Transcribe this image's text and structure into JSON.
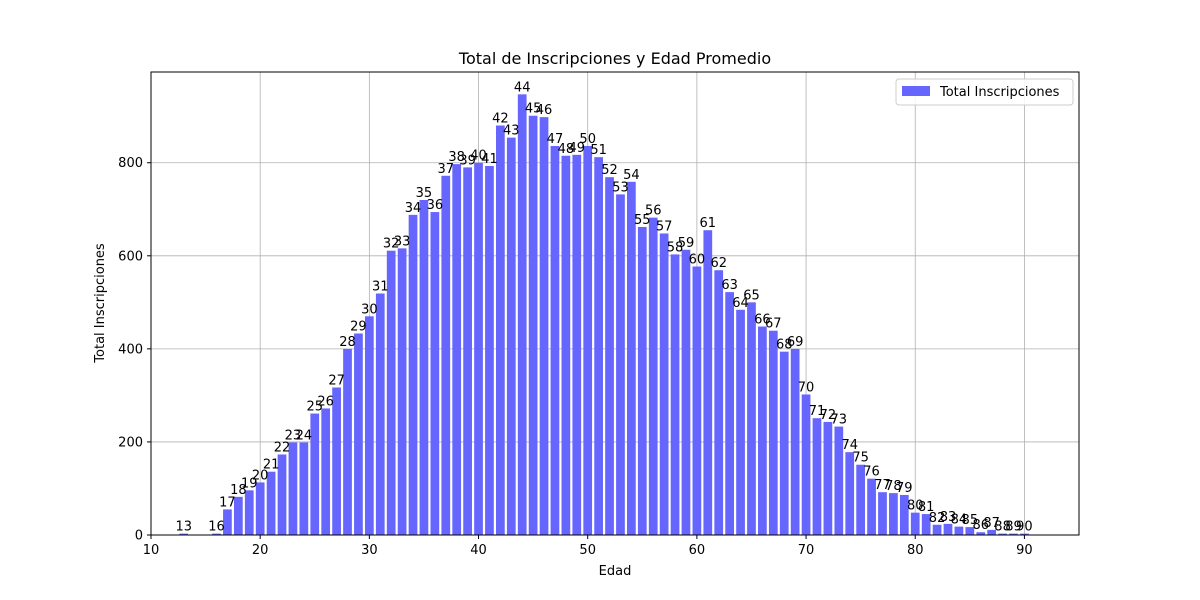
{
  "chart_data": {
    "type": "bar",
    "title": "Total de Inscripciones y Edad Promedio",
    "xlabel": "Edad",
    "ylabel": "Total Inscripciones",
    "xlim": [
      10,
      95
    ],
    "ylim": [
      0,
      995
    ],
    "xticks": [
      10,
      20,
      30,
      40,
      50,
      60,
      70,
      80,
      90
    ],
    "yticks": [
      0,
      200,
      400,
      600,
      800
    ],
    "grid": true,
    "legend_position": "top-right",
    "bar_color": "#6666ff",
    "series": [
      {
        "name": "Total Inscripciones",
        "x": [
          13,
          16,
          17,
          18,
          19,
          20,
          21,
          22,
          23,
          24,
          25,
          26,
          27,
          28,
          29,
          30,
          31,
          32,
          33,
          34,
          35,
          36,
          37,
          38,
          39,
          40,
          41,
          42,
          43,
          44,
          45,
          46,
          47,
          48,
          49,
          50,
          51,
          52,
          53,
          54,
          55,
          56,
          57,
          58,
          59,
          60,
          61,
          62,
          63,
          64,
          65,
          66,
          67,
          68,
          69,
          70,
          71,
          72,
          73,
          74,
          75,
          76,
          77,
          78,
          79,
          80,
          81,
          82,
          83,
          84,
          85,
          86,
          87,
          88,
          89,
          90
        ],
        "values": [
          3,
          3,
          55,
          82,
          96,
          113,
          136,
          173,
          199,
          199,
          261,
          272,
          317,
          400,
          433,
          470,
          519,
          611,
          616,
          688,
          720,
          694,
          772,
          797,
          790,
          800,
          793,
          880,
          854,
          947,
          901,
          898,
          836,
          815,
          817,
          836,
          812,
          769,
          732,
          759,
          662,
          682,
          648,
          603,
          613,
          577,
          655,
          569,
          522,
          484,
          500,
          448,
          439,
          394,
          400,
          302,
          251,
          243,
          233,
          178,
          151,
          121,
          92,
          90,
          86,
          48,
          45,
          22,
          24,
          18,
          17,
          6,
          11,
          3,
          3,
          3
        ],
        "labels": [
          "13",
          "16",
          "17",
          "18",
          "19",
          "20",
          "21",
          "22",
          "23",
          "24",
          "25",
          "26",
          "27",
          "28",
          "29",
          "30",
          "31",
          "32",
          "33",
          "34",
          "35",
          "36",
          "37",
          "38",
          "39",
          "40",
          "41",
          "42",
          "43",
          "44",
          "45",
          "46",
          "47",
          "48",
          "49",
          "50",
          "51",
          "52",
          "53",
          "54",
          "55",
          "56",
          "57",
          "58",
          "59",
          "60",
          "61",
          "62",
          "63",
          "64",
          "65",
          "66",
          "67",
          "68",
          "69",
          "70",
          "71",
          "72",
          "73",
          "74",
          "75",
          "76",
          "77",
          "78",
          "79",
          "80",
          "81",
          "82",
          "83",
          "84",
          "85",
          "86",
          "87",
          "88",
          "89",
          "90"
        ]
      }
    ]
  }
}
